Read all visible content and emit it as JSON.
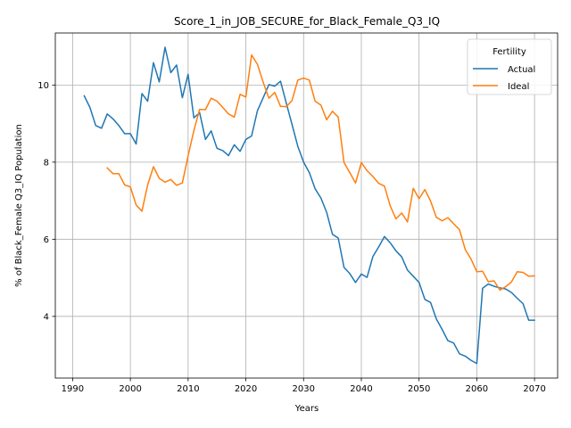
{
  "chart_data": {
    "type": "line",
    "title": "Score_1_in_JOB_SECURE_for_Black_Female_Q3_IQ",
    "xlabel": "Years",
    "ylabel": "% of Black_Female Q3_IQ Population",
    "xlim": [
      1987,
      2074
    ],
    "ylim": [
      2.4,
      11.35
    ],
    "xticks": [
      1990,
      2000,
      2010,
      2020,
      2030,
      2040,
      2050,
      2060,
      2070
    ],
    "yticks": [
      4,
      6,
      8,
      10
    ],
    "grid": true,
    "legend": {
      "title": "Fertility",
      "placement": "top-right"
    },
    "series": [
      {
        "name": "Actual",
        "color": "#1f77b4",
        "x": [
          1992,
          1993,
          1994,
          1995,
          1996,
          1997,
          1998,
          1999,
          2000,
          2001,
          2002,
          2003,
          2004,
          2005,
          2006,
          2007,
          2008,
          2009,
          2010,
          2011,
          2012,
          2013,
          2014,
          2015,
          2016,
          2017,
          2018,
          2019,
          2020,
          2021,
          2022,
          2023,
          2024,
          2025,
          2026,
          2027,
          2028,
          2029,
          2030,
          2031,
          2032,
          2033,
          2034,
          2035,
          2036,
          2037,
          2038,
          2039,
          2040,
          2041,
          2042,
          2043,
          2044,
          2045,
          2046,
          2047,
          2048,
          2049,
          2050,
          2051,
          2052,
          2053,
          2054,
          2055,
          2056,
          2057,
          2058,
          2059,
          2060,
          2061,
          2062,
          2063,
          2064,
          2065,
          2066,
          2067,
          2068,
          2069,
          2070
        ],
        "values": [
          9.72,
          9.42,
          8.95,
          8.88,
          9.25,
          9.12,
          8.95,
          8.74,
          8.74,
          8.47,
          9.78,
          9.58,
          10.58,
          10.08,
          10.98,
          10.32,
          10.52,
          9.67,
          10.28,
          9.15,
          9.28,
          8.59,
          8.81,
          8.36,
          8.3,
          8.17,
          8.45,
          8.28,
          8.59,
          8.68,
          9.33,
          9.67,
          10.01,
          9.97,
          10.1,
          9.53,
          8.98,
          8.41,
          8.0,
          7.73,
          7.31,
          7.07,
          6.7,
          6.13,
          6.03,
          5.27,
          5.11,
          4.88,
          5.1,
          5.01,
          5.55,
          5.8,
          6.07,
          5.91,
          5.7,
          5.54,
          5.2,
          5.04,
          4.88,
          4.44,
          4.36,
          3.93,
          3.66,
          3.37,
          3.31,
          3.03,
          2.97,
          2.86,
          2.78,
          4.73,
          4.84,
          4.78,
          4.74,
          4.71,
          4.62,
          4.47,
          4.33,
          3.9,
          3.9
        ]
      },
      {
        "name": "Ideal",
        "color": "#ff7f0e",
        "x": [
          1996,
          1997,
          1998,
          1999,
          2000,
          2001,
          2002,
          2003,
          2004,
          2005,
          2006,
          2007,
          2008,
          2009,
          2010,
          2011,
          2012,
          2013,
          2014,
          2015,
          2016,
          2017,
          2018,
          2019,
          2020,
          2021,
          2022,
          2023,
          2024,
          2025,
          2026,
          2027,
          2028,
          2029,
          2030,
          2031,
          2032,
          2033,
          2034,
          2035,
          2036,
          2037,
          2038,
          2039,
          2040,
          2041,
          2042,
          2043,
          2044,
          2045,
          2046,
          2047,
          2048,
          2049,
          2050,
          2051,
          2052,
          2053,
          2054,
          2055,
          2056,
          2057,
          2058,
          2059,
          2060,
          2061,
          2062,
          2063,
          2064,
          2065,
          2066,
          2067,
          2068,
          2069,
          2070
        ],
        "values": [
          7.85,
          7.7,
          7.7,
          7.41,
          7.36,
          6.89,
          6.73,
          7.41,
          7.88,
          7.58,
          7.48,
          7.55,
          7.4,
          7.46,
          8.16,
          8.82,
          9.37,
          9.36,
          9.66,
          9.58,
          9.42,
          9.25,
          9.17,
          9.76,
          9.69,
          10.78,
          10.54,
          10.07,
          9.66,
          9.81,
          9.45,
          9.44,
          9.6,
          10.13,
          10.18,
          10.13,
          9.58,
          9.48,
          9.1,
          9.32,
          9.17,
          7.99,
          7.73,
          7.46,
          7.99,
          7.78,
          7.63,
          7.45,
          7.38,
          6.87,
          6.53,
          6.68,
          6.45,
          7.32,
          7.05,
          7.29,
          6.99,
          6.57,
          6.48,
          6.56,
          6.4,
          6.25,
          5.73,
          5.49,
          5.16,
          5.17,
          4.9,
          4.92,
          4.68,
          4.77,
          4.89,
          5.16,
          5.14,
          5.04,
          5.05
        ]
      }
    ]
  }
}
